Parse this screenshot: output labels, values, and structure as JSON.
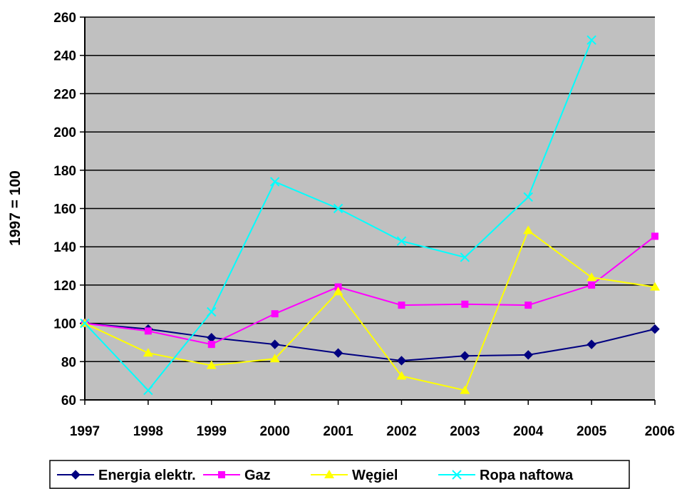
{
  "chart_data": {
    "type": "line",
    "ylabel": "1997 = 100",
    "xlabel": "",
    "title": "",
    "categories": [
      "1997",
      "1998",
      "1999",
      "2000",
      "2001",
      "2002",
      "2003",
      "2004",
      "2005",
      "2006"
    ],
    "ylim": [
      60,
      260
    ],
    "yticks": [
      60,
      80,
      100,
      120,
      140,
      160,
      180,
      200,
      220,
      240,
      260
    ],
    "grid": true,
    "legend_position": "bottom",
    "plot_background": "#c0c0c0",
    "series": [
      {
        "name": "Energia elektr.",
        "color": "#000080",
        "marker": "diamond",
        "values": [
          100,
          97,
          92.5,
          89,
          84.5,
          80.5,
          83,
          83.5,
          89,
          97
        ]
      },
      {
        "name": "Gaz",
        "color": "#ff00ff",
        "marker": "square",
        "values": [
          100,
          96,
          89,
          105,
          119,
          109.5,
          110,
          109.5,
          120,
          145.5
        ]
      },
      {
        "name": "Węgiel",
        "color": "#ffff00",
        "marker": "triangle",
        "values": [
          100,
          84.5,
          78,
          81.5,
          116.5,
          72.5,
          65,
          148.5,
          124,
          119
        ]
      },
      {
        "name": "Ropa naftowa",
        "color": "#00ffff",
        "marker": "x",
        "values": [
          100,
          65,
          106,
          174,
          160,
          143,
          134.5,
          166,
          248,
          null
        ]
      }
    ]
  }
}
